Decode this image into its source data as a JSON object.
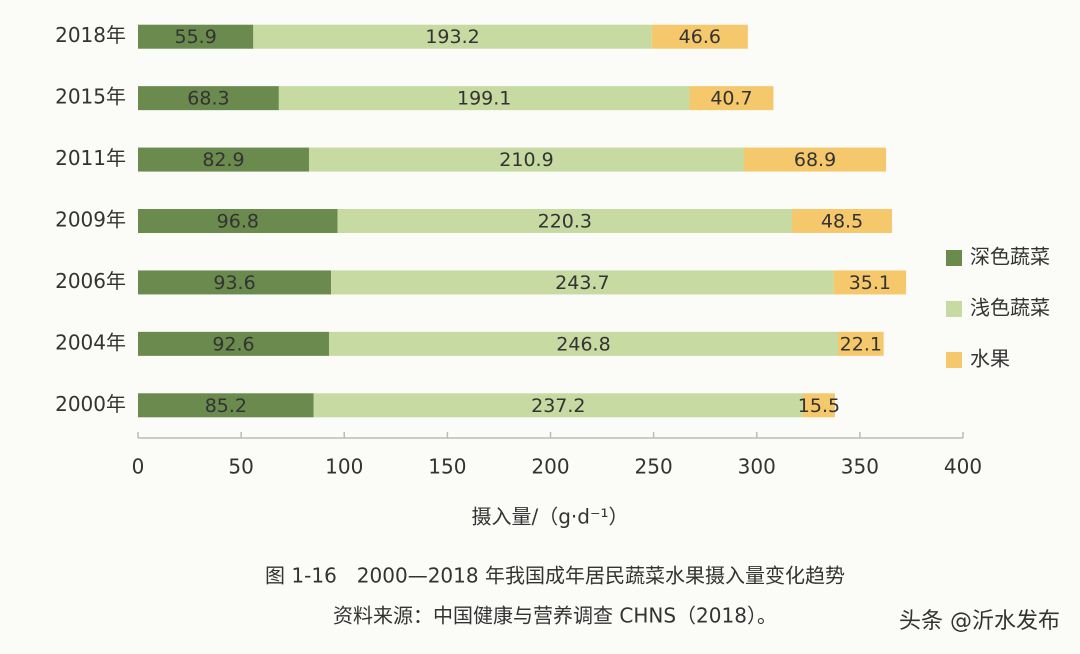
{
  "chart_data": {
    "type": "bar",
    "orientation": "horizontal",
    "stacked": true,
    "categories": [
      "2018年",
      "2015年",
      "2011年",
      "2009年",
      "2006年",
      "2004年",
      "2000年"
    ],
    "series": [
      {
        "name": "深色蔬菜",
        "color": "#6b8a4e",
        "label_color": "#ffffff",
        "values": [
          55.9,
          68.3,
          82.9,
          96.8,
          93.6,
          92.6,
          85.2
        ]
      },
      {
        "name": "浅色蔬菜",
        "color": "#c6daa2",
        "label_color": "#333333",
        "values": [
          193.2,
          199.1,
          210.9,
          220.3,
          243.7,
          246.8,
          237.2
        ]
      },
      {
        "name": "水果",
        "color": "#f6c86c",
        "label_color": "#333333",
        "values": [
          46.6,
          40.7,
          68.9,
          48.5,
          35.1,
          22.1,
          15.5
        ]
      }
    ],
    "xlim": [
      0,
      400
    ],
    "xticks": [
      0,
      50,
      100,
      150,
      200,
      250,
      300,
      350,
      400
    ],
    "xlabel": "摄入量/（g·d⁻¹）",
    "legend": "right",
    "caption": "图 1-16　2000—2018 年我国成年居民蔬菜水果摄入量变化趋势",
    "source": "资料来源：中国健康与营养调查 CHNS（2018）。",
    "watermark": "头条 @沂水发布"
  }
}
